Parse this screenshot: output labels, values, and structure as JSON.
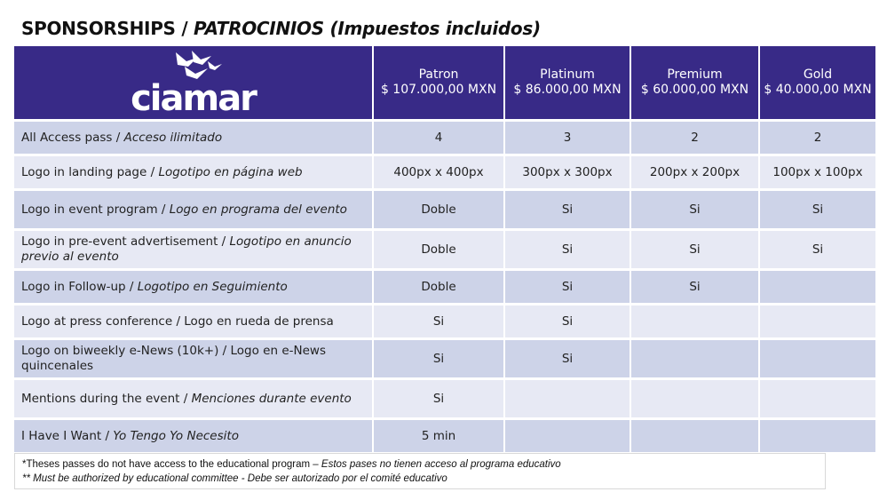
{
  "title": {
    "main": "SPONSORSHIPS / ",
    "italic": "PATROCINIOS (Impuestos incluidos)"
  },
  "logo": {
    "text": "ciamar"
  },
  "tiers": [
    {
      "name": "Patron",
      "price": "$ 107.000,00 MXN"
    },
    {
      "name": "Platinum",
      "price": "$ 86.000,00 MXN"
    },
    {
      "name": "Premium",
      "price": "$ 60.000,00 MXN"
    },
    {
      "name": "Gold",
      "price": "$ 40.000,00 MXN"
    }
  ],
  "rows": [
    {
      "en": "All Access pass / ",
      "es": "Acceso ilimitado",
      "values": [
        "4",
        "3",
        "2",
        "2"
      ]
    },
    {
      "en": "Logo in landing page / ",
      "es": "Logotipo en página web",
      "values": [
        "400px x 400px",
        "300px x 300px",
        "200px x 200px",
        "100px x 100px"
      ]
    },
    {
      "en": "Logo in event program / ",
      "es": "Logo en programa del evento",
      "values": [
        "Doble",
        "Si",
        "Si",
        "Si"
      ]
    },
    {
      "en": "Logo in pre-event advertisement / ",
      "es": "Logotipo en anuncio previo al evento",
      "values": [
        "Doble",
        "Si",
        "Si",
        "Si"
      ]
    },
    {
      "en": "Logo in Follow-up / ",
      "es": "Logotipo en Seguimiento",
      "values": [
        "Doble",
        "Si",
        "Si",
        ""
      ]
    },
    {
      "en": "Logo at press conference / Logo en rueda de prensa",
      "es": "",
      "values": [
        "Si",
        "Si",
        "",
        ""
      ]
    },
    {
      "en": "Logo on biweekly e-News (10k+) / Logo en e-News quincenales",
      "es": "",
      "values": [
        "Si",
        "Si",
        "",
        ""
      ]
    },
    {
      "en": "Mentions during the event / ",
      "es": "Menciones durante evento",
      "values": [
        "Si",
        "",
        "",
        ""
      ]
    },
    {
      "en": "I Have I Want / ",
      "es": "Yo Tengo Yo Necesito",
      "values": [
        "5 min",
        "",
        "",
        ""
      ]
    }
  ],
  "footer": {
    "line1_en": "*Theses passes do not have access to the educational program – ",
    "line1_es": "Estos pases no tienen acceso al programa educativo",
    "line2": "** Must be authorized by educational committee - Debe ser autorizado por el comité educativo"
  },
  "colors": {
    "header": "#382a87",
    "row_dark": "#cdd3e8",
    "row_light": "#e7e9f4"
  }
}
